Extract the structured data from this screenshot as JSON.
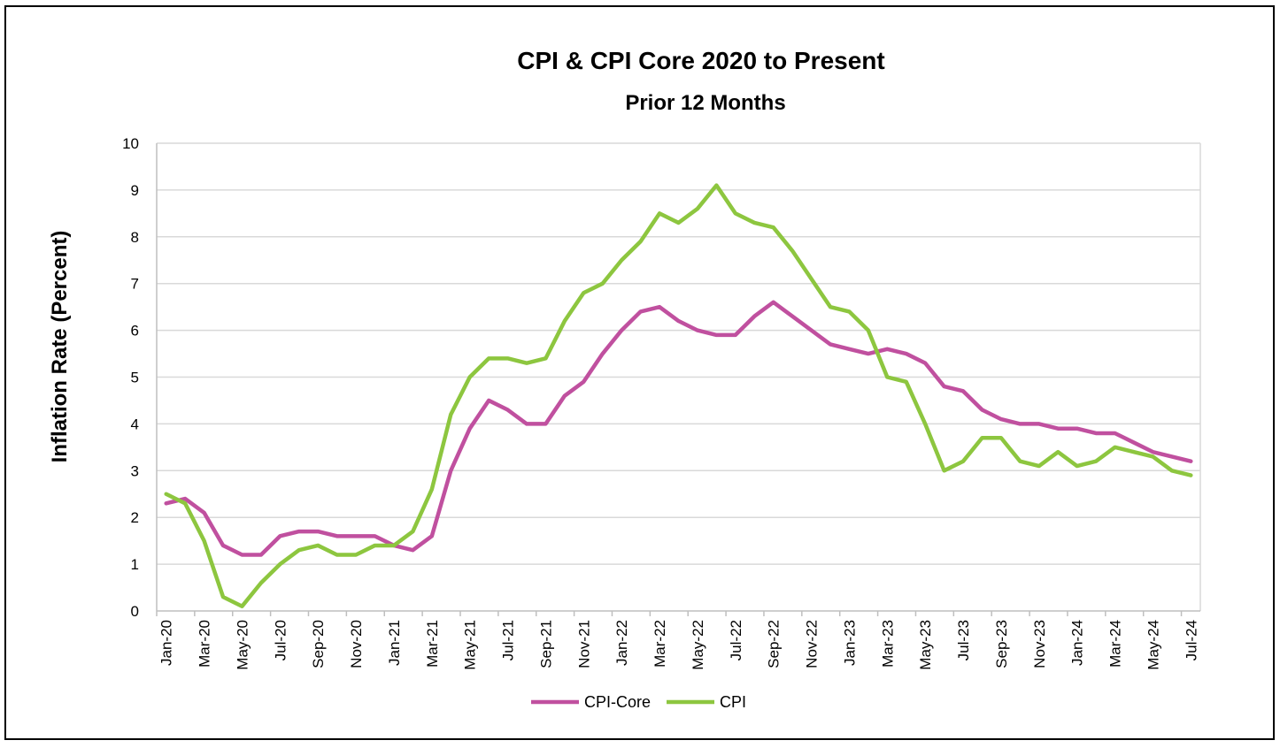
{
  "chart_data": {
    "type": "line",
    "title": "CPI & CPI Core  2020 to Present",
    "subtitle": "Prior 12 Months",
    "xlabel": "",
    "ylabel": "Inflation Rate (Percent)",
    "ylim": [
      0,
      10
    ],
    "yticks": [
      "0",
      "1",
      "2",
      "3",
      "4",
      "5",
      "6",
      "7",
      "8",
      "9",
      "10"
    ],
    "grid": true,
    "legend_position": "bottom",
    "x": [
      "Jan-20",
      "Feb-20",
      "Mar-20",
      "Apr-20",
      "May-20",
      "Jun-20",
      "Jul-20",
      "Aug-20",
      "Sep-20",
      "Oct-20",
      "Nov-20",
      "Dec-20",
      "Jan-21",
      "Feb-21",
      "Mar-21",
      "Apr-21",
      "May-21",
      "Jun-21",
      "Jul-21",
      "Aug-21",
      "Sep-21",
      "Oct-21",
      "Nov-21",
      "Dec-21",
      "Jan-22",
      "Feb-22",
      "Mar-22",
      "Apr-22",
      "May-22",
      "Jun-22",
      "Jul-22",
      "Aug-22",
      "Sep-22",
      "Oct-22",
      "Nov-22",
      "Dec-22",
      "Jan-23",
      "Feb-23",
      "Mar-23",
      "Apr-23",
      "May-23",
      "Jun-23",
      "Jul-23",
      "Aug-23",
      "Sep-23",
      "Oct-23",
      "Nov-23",
      "Dec-23",
      "Jan-24",
      "Feb-24",
      "Mar-24",
      "Apr-24",
      "May-24",
      "Jun-24",
      "Jul-24"
    ],
    "x_tick_labels": [
      "Jan-20",
      "Mar-20",
      "May-20",
      "Jul-20",
      "Sep-20",
      "Nov-20",
      "Jan-21",
      "Mar-21",
      "May-21",
      "Jul-21",
      "Sep-21",
      "Nov-21",
      "Jan-22",
      "Mar-22",
      "May-22",
      "Jul-22",
      "Sep-22",
      "Nov-22",
      "Jan-23",
      "Mar-23",
      "May-23",
      "Jul-23",
      "Sep-23",
      "Nov-23",
      "Jan-24",
      "Mar-24",
      "May-24",
      "Jul-24"
    ],
    "series": [
      {
        "name": "CPI-Core",
        "color": "#c0509f",
        "values": [
          2.3,
          2.4,
          2.1,
          1.4,
          1.2,
          1.2,
          1.6,
          1.7,
          1.7,
          1.6,
          1.6,
          1.6,
          1.4,
          1.3,
          1.6,
          3.0,
          3.9,
          4.5,
          4.3,
          4.0,
          4.0,
          4.6,
          4.9,
          5.5,
          6.0,
          6.4,
          6.5,
          6.2,
          6.0,
          5.9,
          5.9,
          6.3,
          6.6,
          6.3,
          6.0,
          5.7,
          5.6,
          5.5,
          5.6,
          5.5,
          5.3,
          4.8,
          4.7,
          4.3,
          4.1,
          4.0,
          4.0,
          3.9,
          3.9,
          3.8,
          3.8,
          3.6,
          3.4,
          3.3,
          3.2
        ]
      },
      {
        "name": "CPI",
        "color": "#8dc63f",
        "values": [
          2.5,
          2.3,
          1.5,
          0.3,
          0.1,
          0.6,
          1.0,
          1.3,
          1.4,
          1.2,
          1.2,
          1.4,
          1.4,
          1.7,
          2.6,
          4.2,
          5.0,
          5.4,
          5.4,
          5.3,
          5.4,
          6.2,
          6.8,
          7.0,
          7.5,
          7.9,
          8.5,
          8.3,
          8.6,
          9.1,
          8.5,
          8.3,
          8.2,
          7.7,
          7.1,
          6.5,
          6.4,
          6.0,
          5.0,
          4.9,
          4.0,
          3.0,
          3.2,
          3.7,
          3.7,
          3.2,
          3.1,
          3.4,
          3.1,
          3.2,
          3.5,
          3.4,
          3.3,
          3.0,
          2.9
        ]
      }
    ]
  }
}
